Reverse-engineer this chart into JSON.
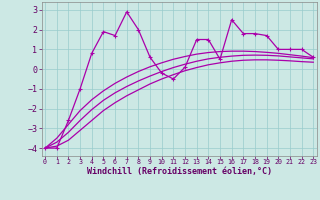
{
  "xlabel": "Windchill (Refroidissement éolien,°C)",
  "background_color": "#cce8e4",
  "grid_color": "#99cccc",
  "line_color": "#aa00aa",
  "spine_color": "#888888",
  "x_ticks": [
    0,
    1,
    2,
    3,
    4,
    5,
    6,
    7,
    8,
    9,
    10,
    11,
    12,
    13,
    14,
    15,
    16,
    17,
    18,
    19,
    20,
    21,
    22,
    23
  ],
  "y_ticks": [
    -4,
    -3,
    -2,
    -1,
    0,
    1,
    2,
    3
  ],
  "xlim": [
    -0.3,
    23.3
  ],
  "ylim": [
    -4.4,
    3.4
  ],
  "main_line_x": [
    0,
    1,
    2,
    3,
    4,
    5,
    6,
    7,
    8,
    9,
    10,
    11,
    12,
    13,
    14,
    15,
    16,
    17,
    18,
    19,
    20,
    21,
    22,
    23
  ],
  "main_line_y": [
    -4.0,
    -4.0,
    -2.6,
    -1.0,
    0.8,
    1.9,
    1.7,
    2.9,
    2.0,
    0.6,
    -0.2,
    -0.5,
    0.1,
    1.5,
    1.5,
    0.5,
    2.5,
    1.8,
    1.8,
    1.7,
    1.0,
    1.0,
    1.0,
    0.6
  ],
  "smooth_line1_x": [
    0,
    1,
    2,
    3,
    4,
    5,
    6,
    7,
    8,
    9,
    10,
    11,
    12,
    13,
    14,
    15,
    16,
    17,
    18,
    19,
    20,
    21,
    22,
    23
  ],
  "smooth_line1_y": [
    -4.0,
    -3.9,
    -3.6,
    -3.1,
    -2.6,
    -2.1,
    -1.7,
    -1.35,
    -1.05,
    -0.75,
    -0.5,
    -0.28,
    -0.08,
    0.08,
    0.22,
    0.32,
    0.4,
    0.45,
    0.47,
    0.47,
    0.45,
    0.42,
    0.38,
    0.35
  ],
  "smooth_line2_x": [
    0,
    1,
    2,
    3,
    4,
    5,
    6,
    7,
    8,
    9,
    10,
    11,
    12,
    13,
    14,
    15,
    16,
    17,
    18,
    19,
    20,
    21,
    22,
    23
  ],
  "smooth_line2_y": [
    -4.0,
    -3.7,
    -3.2,
    -2.6,
    -2.05,
    -1.58,
    -1.2,
    -0.88,
    -0.6,
    -0.35,
    -0.12,
    0.08,
    0.25,
    0.4,
    0.52,
    0.6,
    0.66,
    0.7,
    0.71,
    0.7,
    0.67,
    0.62,
    0.57,
    0.52
  ],
  "smooth_line3_x": [
    0,
    1,
    2,
    3,
    4,
    5,
    6,
    7,
    8,
    9,
    10,
    11,
    12,
    13,
    14,
    15,
    16,
    17,
    18,
    19,
    20,
    21,
    22,
    23
  ],
  "smooth_line3_y": [
    -4.0,
    -3.5,
    -2.8,
    -2.1,
    -1.55,
    -1.1,
    -0.72,
    -0.4,
    -0.12,
    0.12,
    0.32,
    0.5,
    0.64,
    0.76,
    0.84,
    0.89,
    0.91,
    0.91,
    0.89,
    0.85,
    0.8,
    0.73,
    0.66,
    0.58
  ],
  "tick_color": "#660066",
  "label_color": "#660066",
  "xlabel_fontsize": 6.0,
  "ytick_fontsize": 6.0,
  "xtick_fontsize": 4.8
}
